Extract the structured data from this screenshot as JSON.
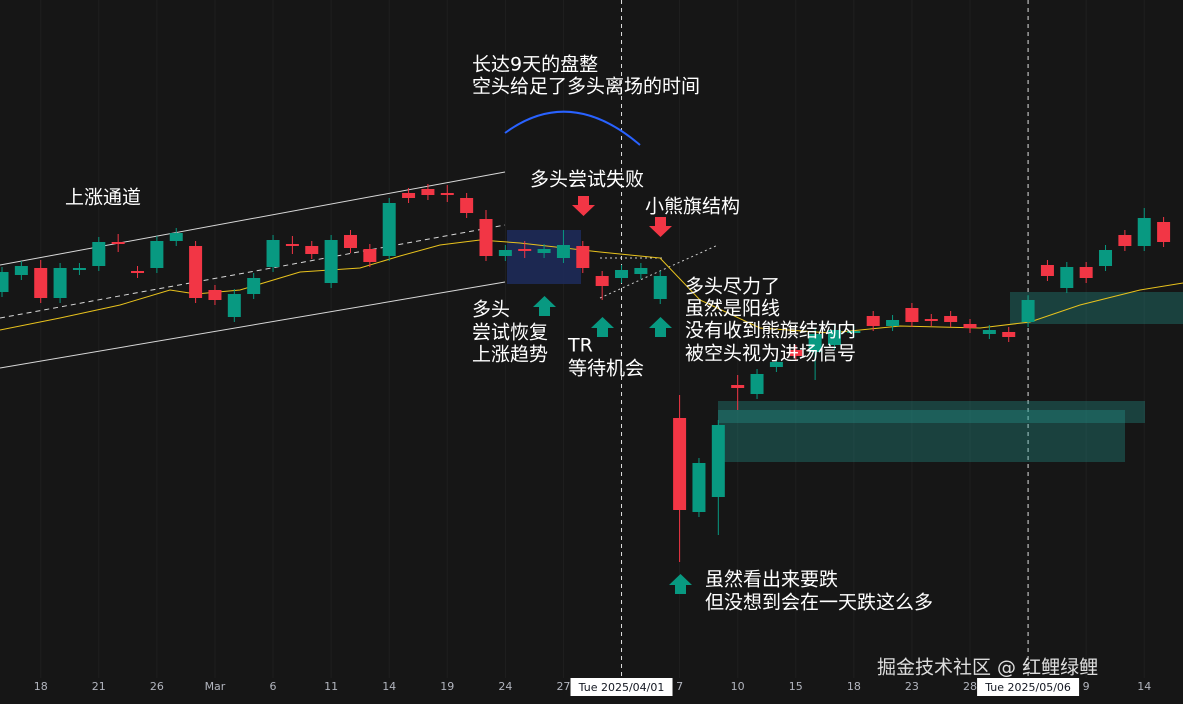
{
  "chart_data": {
    "type": "candlestick",
    "up_color": "#089981",
    "down_color": "#f23645",
    "ylim": [
      0,
      70
    ],
    "categories": [
      null,
      null,
      "18",
      null,
      null,
      "21",
      null,
      null,
      "26",
      null,
      null,
      "Mar",
      null,
      null,
      "6",
      null,
      null,
      "11",
      null,
      null,
      "14",
      null,
      null,
      "19",
      null,
      null,
      "24",
      null,
      null,
      "27",
      null,
      null,
      "Tue 2025/04/01",
      null,
      null,
      "7",
      null,
      null,
      "10",
      null,
      null,
      "15",
      null,
      null,
      "18",
      null,
      null,
      "23",
      null,
      null,
      "28",
      null,
      null,
      "Tue 2025/05/06",
      null,
      null,
      "9",
      null,
      null,
      "14",
      null
    ],
    "candles": [
      [
        40.8,
        43.3,
        40.3,
        42.8
      ],
      [
        42.5,
        43.9,
        42.0,
        43.4
      ],
      [
        43.2,
        44.0,
        39.7,
        40.2
      ],
      [
        40.2,
        43.7,
        39.7,
        43.2
      ],
      [
        43.0,
        43.7,
        42.5,
        43.2
      ],
      [
        43.4,
        46.3,
        42.9,
        45.8
      ],
      [
        45.8,
        46.6,
        44.8,
        45.6
      ],
      [
        42.9,
        43.4,
        42.2,
        42.7
      ],
      [
        43.2,
        46.4,
        42.7,
        45.9
      ],
      [
        45.9,
        47.2,
        45.4,
        46.7
      ],
      [
        45.4,
        45.9,
        39.7,
        40.2
      ],
      [
        41.0,
        41.5,
        39.5,
        40.0
      ],
      [
        38.3,
        41.1,
        37.8,
        40.6
      ],
      [
        40.6,
        42.7,
        40.1,
        42.2
      ],
      [
        43.3,
        46.5,
        42.8,
        46.0
      ],
      [
        45.6,
        46.4,
        44.6,
        45.4
      ],
      [
        45.4,
        45.9,
        44.1,
        44.6
      ],
      [
        41.7,
        46.5,
        41.2,
        46.0
      ],
      [
        46.5,
        47.0,
        44.7,
        45.2
      ],
      [
        45.1,
        45.6,
        43.3,
        43.8
      ],
      [
        44.4,
        50.2,
        43.9,
        49.7
      ],
      [
        50.7,
        51.2,
        49.7,
        50.2
      ],
      [
        51.1,
        51.6,
        50.0,
        50.5
      ],
      [
        50.7,
        51.5,
        49.8,
        50.5
      ],
      [
        50.2,
        50.7,
        48.2,
        48.7
      ],
      [
        48.1,
        49.0,
        43.9,
        44.4
      ],
      [
        44.4,
        45.5,
        43.9,
        45.0
      ],
      [
        45.1,
        45.9,
        44.2,
        44.9
      ],
      [
        44.7,
        45.6,
        44.2,
        45.1
      ],
      [
        44.2,
        47.0,
        43.7,
        45.5
      ],
      [
        45.4,
        45.9,
        42.7,
        43.2
      ],
      [
        42.4,
        42.9,
        40.0,
        41.4
      ],
      [
        42.2,
        43.5,
        41.7,
        43.0
      ],
      [
        42.6,
        43.7,
        42.1,
        43.2
      ],
      [
        40.1,
        42.9,
        39.6,
        42.4
      ],
      [
        28.2,
        30.5,
        13.8,
        19.0
      ],
      [
        18.8,
        24.2,
        18.3,
        23.7
      ],
      [
        20.3,
        28.0,
        16.5,
        27.5
      ],
      [
        31.5,
        32.5,
        29.0,
        31.2
      ],
      [
        30.6,
        33.1,
        30.1,
        32.6
      ],
      [
        33.3,
        34.3,
        32.8,
        33.8
      ],
      [
        35.0,
        35.5,
        33.9,
        34.4
      ],
      [
        34.8,
        37.1,
        32.0,
        36.6
      ],
      [
        35.5,
        37.5,
        35.0,
        37.0
      ],
      [
        36.7,
        37.4,
        36.2,
        36.9
      ],
      [
        38.4,
        38.9,
        36.9,
        37.4
      ],
      [
        37.4,
        38.5,
        36.9,
        38.0
      ],
      [
        39.2,
        39.7,
        37.3,
        37.8
      ],
      [
        38.1,
        38.6,
        37.4,
        37.9
      ],
      [
        38.4,
        38.9,
        37.3,
        37.8
      ],
      [
        37.6,
        38.1,
        36.7,
        37.2
      ],
      [
        36.6,
        37.5,
        36.1,
        37.0
      ],
      [
        36.8,
        37.3,
        35.8,
        36.3
      ],
      [
        37.8,
        40.5,
        37.3,
        40.0
      ],
      [
        43.5,
        44.0,
        41.9,
        42.4
      ],
      [
        41.2,
        43.8,
        40.7,
        43.3
      ],
      [
        43.3,
        43.8,
        41.7,
        42.2
      ],
      [
        43.4,
        45.5,
        42.9,
        45.0
      ],
      [
        46.5,
        47.0,
        44.9,
        45.4
      ],
      [
        45.4,
        49.2,
        44.9,
        48.2
      ],
      [
        47.8,
        48.3,
        45.3,
        45.8
      ]
    ]
  },
  "annotations": [
    [
      "上涨通道"
    ],
    [
      "长达9天的盘整",
      "空头给足了多头离场的时间"
    ],
    [
      "多头尝试失败"
    ],
    [
      "小熊旗结构"
    ],
    [
      "多头",
      "尝试恢复",
      "上涨趋势"
    ],
    [
      "TR",
      "等待机会"
    ],
    [
      "多头尽力了",
      "虽然是阳线",
      "没有收到熊旗结构内",
      "被空头视为进场信号"
    ],
    [
      "虽然看出来要跌",
      "但没想到会在一天跌这么多"
    ]
  ],
  "watermark": "掘金技术社区 @ 红鲤绿鲤"
}
